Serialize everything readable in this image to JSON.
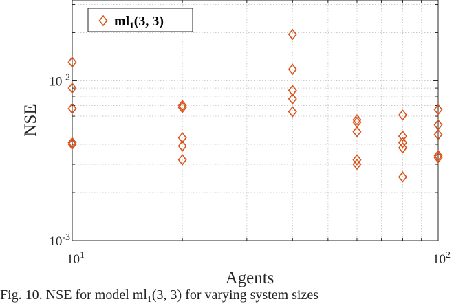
{
  "chart_data": {
    "type": "scatter",
    "title": "",
    "xlabel": "Agents",
    "ylabel": "NSE",
    "xscale": "log",
    "yscale": "log",
    "xlim": [
      10,
      100
    ],
    "ylim": [
      0.001,
      0.032
    ],
    "x_ticks": [
      {
        "value": 10,
        "label_base": "10",
        "label_exp": "1"
      },
      {
        "value": 100,
        "label_base": "10",
        "label_exp": "2"
      }
    ],
    "y_ticks": [
      {
        "value": 0.001,
        "label_base": "10",
        "label_exp": "-3"
      },
      {
        "value": 0.01,
        "label_base": "10",
        "label_exp": "-2"
      }
    ],
    "grid": true,
    "legend": {
      "placement": "top-left",
      "entries": [
        {
          "name": "ml",
          "subscript": "1",
          "args": "(3, 3)",
          "marker": "diamond",
          "color": "#d95319"
        }
      ]
    },
    "series": [
      {
        "name": "ml1(3,3)",
        "marker": "diamond",
        "color": "#d95319",
        "points": [
          {
            "x": 10,
            "y": 0.0131
          },
          {
            "x": 10,
            "y": 0.009
          },
          {
            "x": 10,
            "y": 0.0067
          },
          {
            "x": 10,
            "y": 0.0041
          },
          {
            "x": 10,
            "y": 0.004
          },
          {
            "x": 20,
            "y": 0.007
          },
          {
            "x": 20,
            "y": 0.0068
          },
          {
            "x": 20,
            "y": 0.0044
          },
          {
            "x": 20,
            "y": 0.0039
          },
          {
            "x": 20,
            "y": 0.0032
          },
          {
            "x": 40,
            "y": 0.0195
          },
          {
            "x": 40,
            "y": 0.0118
          },
          {
            "x": 40,
            "y": 0.0087
          },
          {
            "x": 40,
            "y": 0.0077
          },
          {
            "x": 40,
            "y": 0.0064
          },
          {
            "x": 60,
            "y": 0.0057
          },
          {
            "x": 60,
            "y": 0.0055
          },
          {
            "x": 60,
            "y": 0.0048
          },
          {
            "x": 60,
            "y": 0.0032
          },
          {
            "x": 60,
            "y": 0.003
          },
          {
            "x": 80,
            "y": 0.0061
          },
          {
            "x": 80,
            "y": 0.0045
          },
          {
            "x": 80,
            "y": 0.0041
          },
          {
            "x": 80,
            "y": 0.0038
          },
          {
            "x": 80,
            "y": 0.0025
          },
          {
            "x": 100,
            "y": 0.0066
          },
          {
            "x": 100,
            "y": 0.0053
          },
          {
            "x": 100,
            "y": 0.0046
          },
          {
            "x": 100,
            "y": 0.0034
          },
          {
            "x": 100,
            "y": 0.0033
          }
        ]
      }
    ]
  },
  "caption": "Fig. 10.  NSE for model ml₁(3, 3) for varying system sizes"
}
